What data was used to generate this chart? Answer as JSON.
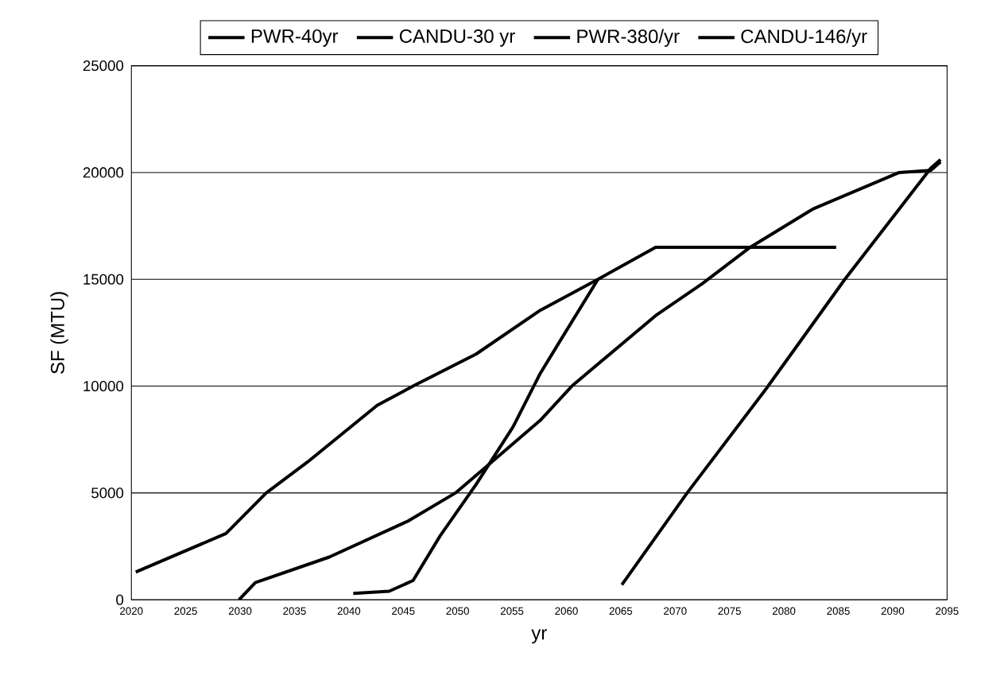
{
  "chart_data": {
    "type": "line",
    "xlabel": "yr",
    "ylabel": "SF (MTU)",
    "xlim": [
      2020,
      2095
    ],
    "xticks": [
      2020,
      2025,
      2030,
      2035,
      2040,
      2045,
      2050,
      2055,
      2060,
      2065,
      2070,
      2075,
      2080,
      2085,
      2090,
      2095
    ],
    "ylim": [
      0,
      25000
    ],
    "yticks": [
      0,
      5000,
      10000,
      15000,
      20000,
      25000
    ],
    "grid": "y",
    "legend": "top",
    "marker": "none",
    "line_style": "solid",
    "series": [
      {
        "name": "PWR-40yr",
        "color": "#000000",
        "x": [
          2020.4,
          2028.7,
          2032.4,
          2036.2,
          2042.6,
          2045.9,
          2051.7,
          2057.6,
          2062.9,
          2068.2,
          2084.8
        ],
        "values": [
          1300,
          3100,
          5000,
          6450,
          9100,
          10000,
          11500,
          13550,
          15000,
          16500,
          16500
        ]
      },
      {
        "name": "CANDU-30 yr",
        "color": "#000000",
        "x": [
          2029.9,
          2031.4,
          2038.2,
          2045.5,
          2049.8,
          2053.6,
          2057.6,
          2060.5,
          2068.2,
          2072.5,
          2076.9,
          2082.7,
          2090.6,
          2093.5,
          2094.4
        ],
        "values": [
          0,
          800,
          2000,
          3700,
          5000,
          6650,
          8400,
          10000,
          13300,
          14800,
          16500,
          18300,
          20000,
          20100,
          20500
        ]
      },
      {
        "name": "PWR-380/yr",
        "color": "#000000",
        "x": [
          2040.4,
          2043.7,
          2045.9,
          2048.4,
          2051.7,
          2055.1,
          2057.6,
          2059.4,
          2062.9
        ],
        "values": [
          300,
          400,
          900,
          3000,
          5400,
          8100,
          10600,
          12100,
          15000
        ]
      },
      {
        "name": "CANDU-146/yr",
        "color": "#000000",
        "x": [
          2065.1,
          2071.1,
          2078.4,
          2085.6,
          2093.5,
          2094.4
        ],
        "values": [
          700,
          5000,
          9900,
          15000,
          20200,
          20600
        ]
      }
    ]
  }
}
